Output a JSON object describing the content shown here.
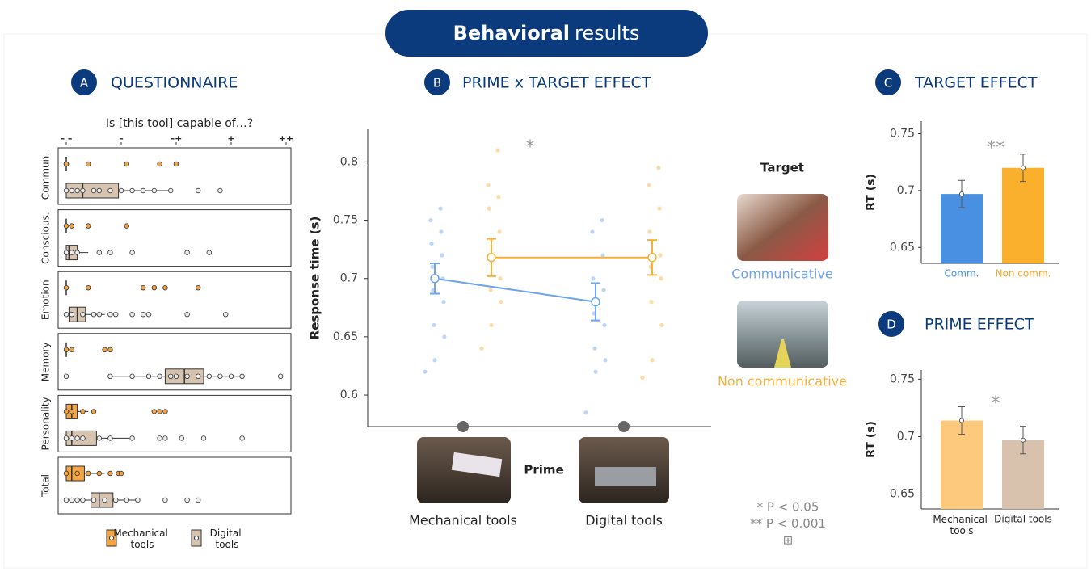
{
  "header": {
    "bold": "Behavioral",
    "rest": "results"
  },
  "chart_data": [
    {
      "type": "box",
      "label": "A",
      "title": "QUESTIONNAIRE",
      "subtitle": "Is [this tool] capable of…?",
      "xlim": [
        0.853,
        5.088
      ],
      "xticks": [
        {
          "value": 1,
          "label": "– –"
        },
        {
          "value": 2,
          "label": "–"
        },
        {
          "value": 3,
          "label": "–+"
        },
        {
          "value": 4,
          "label": "+"
        },
        {
          "value": 5,
          "label": "++"
        }
      ],
      "categories": [
        "Commun.",
        "Conscious.",
        "Emotion",
        "Memory",
        "Personality",
        "Total"
      ],
      "series": [
        {
          "name": "Mechanical tools",
          "color": "#f5a443",
          "boxes": [
            [
              1,
              1,
              1,
              1,
              1.05
            ],
            [
              1,
              1,
              1,
              1,
              1.05
            ],
            [
              1,
              1,
              1,
              1,
              1.05
            ],
            [
              1,
              1,
              1,
              1,
              1.05
            ],
            [
              1,
              1,
              1.1,
              1.2,
              1.4
            ],
            [
              1,
              1,
              1.1,
              1.33,
              1.7
            ]
          ],
          "points": [
            [
              1,
              1,
              1.4,
              2.1,
              2.7,
              3.0
            ],
            [
              1,
              1.1,
              1.4,
              2.1
            ],
            [
              1,
              1.4,
              2.4,
              2.6,
              2.8,
              3.4
            ],
            [
              1,
              1.1,
              1.7,
              1.8
            ],
            [
              1,
              1.1,
              1.3,
              1.5,
              2.6,
              2.7,
              2.8
            ],
            [
              1,
              1.2,
              1.4,
              1.6,
              1.8,
              1.95,
              2.0
            ]
          ]
        },
        {
          "name": "Digital tools",
          "color": "#d6c3b0",
          "boxes": [
            [
              1,
              1,
              1.3,
              1.95,
              2.9
            ],
            [
              1,
              1,
              1.05,
              1.2,
              1.4
            ],
            [
              1,
              1.05,
              1.2,
              1.35,
              1.7
            ],
            [
              1.8,
              2.8,
              3.15,
              3.5,
              4.2
            ],
            [
              1,
              1,
              1.1,
              1.55,
              2.15
            ],
            [
              1,
              1.45,
              1.6,
              1.85,
              2.3
            ]
          ],
          "points": [
            [
              1,
              1.1,
              1.2,
              1.3,
              1.5,
              1.6,
              1.8,
              2.0,
              2.2,
              2.4,
              2.6,
              2.9,
              3.4,
              3.8
            ],
            [
              1,
              1.1,
              1.2,
              1.6,
              1.8,
              2.2,
              3.2,
              3.6
            ],
            [
              1,
              1.1,
              1.3,
              1.5,
              1.6,
              1.8,
              1.9,
              2.2,
              2.4,
              2.5,
              3.2,
              3.9
            ],
            [
              1,
              1.8,
              2.2,
              2.5,
              2.7,
              2.9,
              3.0,
              3.2,
              3.4,
              3.6,
              3.8,
              4.0,
              4.2,
              4.9
            ],
            [
              1,
              1.1,
              1.2,
              1.3,
              1.6,
              1.8,
              2.2,
              2.7,
              2.8,
              3.1,
              3.5,
              4.2
            ],
            [
              1,
              1.1,
              1.2,
              1.3,
              1.5,
              1.7,
              1.9,
              2.1,
              2.3,
              2.8,
              3.2,
              3.4
            ]
          ]
        }
      ]
    },
    {
      "type": "line",
      "label": "B",
      "title": "PRIME x TARGET EFFECT",
      "y_label": "Response time (s)",
      "x_label": "Prime",
      "legend_title": "Target",
      "annotation": "*",
      "notes": [
        "* P < 0.05",
        "** P < 0.001",
        "⊞"
      ],
      "categories": [
        "Mechanical tools",
        "Digital tools"
      ],
      "ylim": [
        0.573,
        0.828
      ],
      "yticks": [
        0.6,
        0.65,
        0.7,
        0.75,
        0.8
      ],
      "series": [
        {
          "name": "Communicative",
          "color": "#6fa3ec",
          "values": [
            0.7,
            0.68
          ],
          "errors": [
            0.013,
            0.016
          ],
          "points": [
            [
              0.62,
              0.63,
              0.65,
              0.66,
              0.68,
              0.69,
              0.7,
              0.71,
              0.72,
              0.73,
              0.74,
              0.75,
              0.76
            ],
            [
              0.585,
              0.62,
              0.63,
              0.64,
              0.66,
              0.67,
              0.69,
              0.7,
              0.72,
              0.74,
              0.75
            ]
          ]
        },
        {
          "name": "Non communicative",
          "color": "#f7b13a",
          "values": [
            0.718,
            0.718
          ],
          "errors": [
            0.016,
            0.015
          ],
          "points": [
            [
              0.64,
              0.66,
              0.68,
              0.69,
              0.7,
              0.72,
              0.74,
              0.76,
              0.77,
              0.78,
              0.81
            ],
            [
              0.615,
              0.63,
              0.66,
              0.68,
              0.7,
              0.71,
              0.72,
              0.74,
              0.76,
              0.78,
              0.795
            ]
          ]
        }
      ]
    },
    {
      "type": "bar",
      "label": "C",
      "title": "TARGET EFFECT",
      "y_label": "RT (s)",
      "annotation": "**",
      "categories": [
        "Comm.",
        "Non comm."
      ],
      "category_colors": [
        "#4a90e2",
        "#f7a823"
      ],
      "values": [
        0.697,
        0.72
      ],
      "errors": [
        0.012,
        0.012
      ],
      "colors": [
        "#4a90e2",
        "#fbb02d"
      ],
      "ylim": [
        0.636,
        0.761
      ],
      "yticks": [
        0.65,
        0.7,
        0.75
      ]
    },
    {
      "type": "bar",
      "label": "D",
      "title": "PRIME EFFECT",
      "y_label": "RT (s)",
      "annotation": "*",
      "categories": [
        "Mechanical tools",
        "Digital tools"
      ],
      "category_colors": [
        "#222222",
        "#222222"
      ],
      "values": [
        0.714,
        0.697
      ],
      "errors": [
        0.012,
        0.012
      ],
      "colors": [
        "#fdc97d",
        "#d8c2ad"
      ],
      "ylim": [
        0.637,
        0.758
      ],
      "yticks": [
        0.65,
        0.7,
        0.75
      ]
    }
  ]
}
